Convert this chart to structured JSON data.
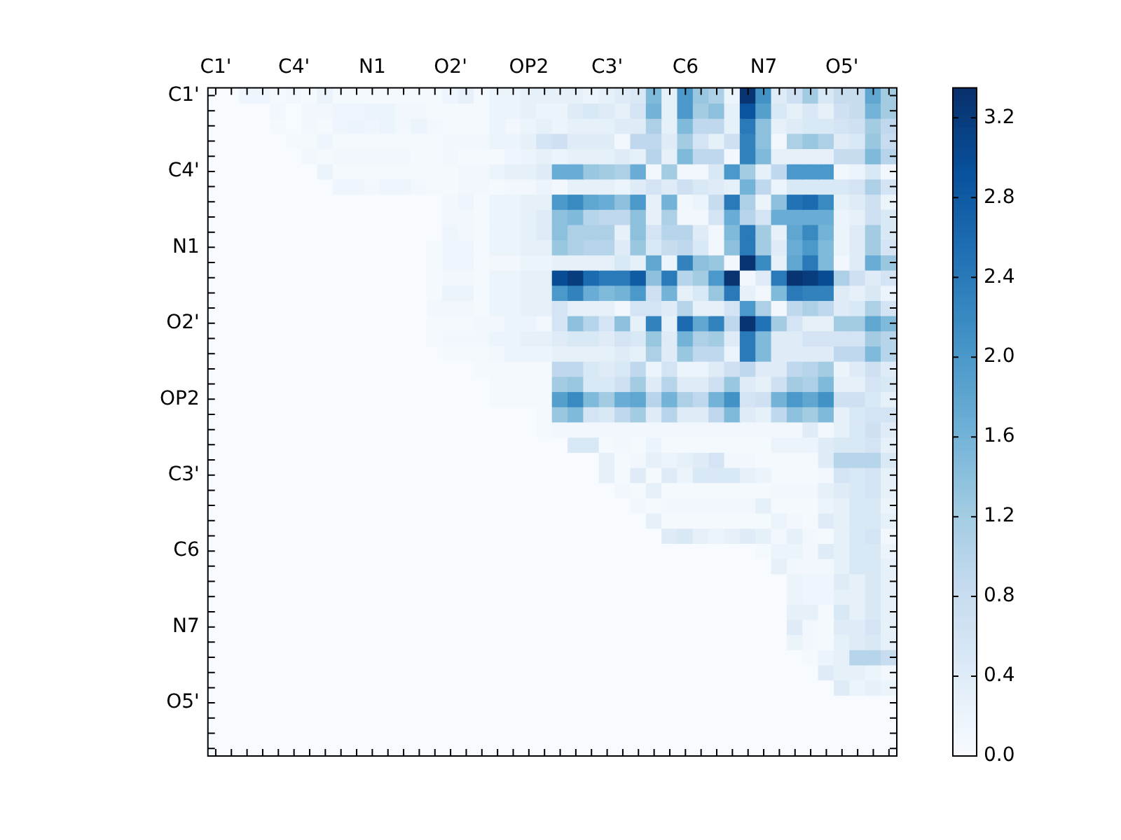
{
  "chart_data": {
    "type": "heatmap",
    "categories": [
      "C1'",
      null,
      null,
      null,
      null,
      "C4'",
      null,
      null,
      null,
      null,
      "N1",
      null,
      null,
      null,
      null,
      "O2'",
      null,
      null,
      null,
      null,
      "OP2",
      null,
      null,
      null,
      null,
      "C3'",
      null,
      null,
      null,
      null,
      "C6",
      null,
      null,
      null,
      null,
      "N7",
      null,
      null,
      null,
      null,
      "O5'",
      null,
      null,
      null
    ],
    "y_categories": [
      "C1'",
      null,
      null,
      null,
      null,
      "C4'",
      null,
      null,
      null,
      null,
      "N1",
      null,
      null,
      null,
      null,
      "O2'",
      null,
      null,
      null,
      null,
      "OP2",
      null,
      null,
      null,
      null,
      "C3'",
      null,
      null,
      null,
      null,
      "C6",
      null,
      null,
      null,
      null,
      "N7",
      null,
      null,
      null,
      null,
      "O5'",
      null,
      null,
      null
    ],
    "clim": [
      0,
      3.35
    ],
    "cticks": [
      {
        "value": 0,
        "label": "0.0"
      },
      0.4,
      0.8,
      1.2,
      1.6,
      {
        "value": 2,
        "label": "2.0"
      },
      2.4,
      2.8,
      3.2
    ],
    "cells": [
      [
        0,
        0,
        0.15,
        0.15,
        0.05,
        0.1,
        0.05,
        0.2,
        0.05,
        0.05,
        0.05,
        0.05,
        0.05,
        0.05,
        0.05,
        0.15,
        0.25,
        0.05,
        0.2,
        0.2,
        0.3,
        0.3,
        0.3,
        0.3,
        0.2,
        0.3,
        0.4,
        0.5,
        1.5,
        0.3,
        2.0,
        1.3,
        1.1,
        0.2,
        3.3,
        2.1,
        0.4,
        0.7,
        1.2,
        0.5,
        0.8,
        0.8,
        1.8,
        1.2
      ],
      [
        0,
        0,
        0,
        0,
        0.1,
        0,
        0.1,
        0.1,
        0.15,
        0.15,
        0.2,
        0.2,
        0.1,
        0.1,
        0.05,
        0.05,
        0.05,
        0.05,
        0.2,
        0.2,
        0.3,
        0.2,
        0.2,
        0.4,
        0.5,
        0.4,
        0.3,
        0.6,
        1.6,
        0.3,
        2.0,
        1.2,
        1.4,
        0.3,
        2.9,
        1.9,
        0.5,
        0.3,
        0.5,
        0.3,
        0.7,
        0.8,
        1.6,
        1.2
      ],
      [
        0,
        0,
        0,
        0,
        0.05,
        0,
        0.1,
        0.05,
        0.15,
        0.2,
        0.15,
        0.2,
        0.1,
        0.2,
        0.1,
        0.05,
        0.05,
        0.05,
        0.2,
        0.1,
        0.2,
        0.3,
        0.2,
        0.3,
        0.3,
        0.3,
        0.4,
        0.4,
        1.1,
        0.3,
        1.5,
        0.9,
        0.9,
        0.3,
        2.4,
        1.4,
        0.3,
        0.4,
        0.5,
        0.5,
        0.6,
        0.7,
        1.2,
        0.9
      ],
      [
        0,
        0,
        0,
        0,
        0,
        0.05,
        0.05,
        0.15,
        0.05,
        0.05,
        0.05,
        0.05,
        0.05,
        0.05,
        0.05,
        0.1,
        0.1,
        0.1,
        0.2,
        0.2,
        0.3,
        0.6,
        0.7,
        0.4,
        0.4,
        0.4,
        0.1,
        0.9,
        0.9,
        0.4,
        1.2,
        0.6,
        0.3,
        0.7,
        2.3,
        1.4,
        0.1,
        1.1,
        1.3,
        1.1,
        0.4,
        0.5,
        1.3,
        0.8
      ],
      [
        0,
        0,
        0,
        0,
        0,
        0,
        0.1,
        0.05,
        0.1,
        0.1,
        0.1,
        0.1,
        0.1,
        0.05,
        0.05,
        0.1,
        0.05,
        0.05,
        0.05,
        0.15,
        0.2,
        0.3,
        0.2,
        0.3,
        0.3,
        0.3,
        0.4,
        0.3,
        1.0,
        0.3,
        1.5,
        0.9,
        0.9,
        0.1,
        2.3,
        1.5,
        0.3,
        0.3,
        0.3,
        0.3,
        0.8,
        0.8,
        1.5,
        1.0
      ],
      [
        0,
        0,
        0,
        0,
        0,
        0,
        0,
        0.2,
        0.05,
        0.05,
        0.05,
        0.05,
        0.05,
        0.05,
        0.05,
        0.05,
        0.1,
        0.1,
        0.2,
        0.3,
        0.3,
        0.4,
        1.7,
        1.7,
        1.3,
        1.2,
        1.1,
        1.7,
        0.1,
        1.2,
        0.1,
        0.1,
        0.5,
        2.0,
        1.2,
        0.3,
        0.9,
        2.0,
        2.0,
        2.0,
        0.1,
        0.2,
        0.5,
        0.1
      ],
      [
        0,
        0,
        0,
        0,
        0,
        0,
        0,
        0,
        0.15,
        0.15,
        0.1,
        0.15,
        0.15,
        0.1,
        0.05,
        0.05,
        0.1,
        0.1,
        0.05,
        0.1,
        0.1,
        0.2,
        0.1,
        0.3,
        0.3,
        0.3,
        0.2,
        0.4,
        0.6,
        0.4,
        0.7,
        0.5,
        0.4,
        0.3,
        1.6,
        0.9,
        0.2,
        0.5,
        0.5,
        0.5,
        0.5,
        0.6,
        1.1,
        0.6
      ],
      [
        0,
        0,
        0,
        0,
        0,
        0,
        0,
        0,
        0,
        0,
        0,
        0,
        0,
        0,
        0,
        0.1,
        0.15,
        0.05,
        0.2,
        0.2,
        0.3,
        0.3,
        2.0,
        2.2,
        1.8,
        1.7,
        1.4,
        2.0,
        0.3,
        1.6,
        0.1,
        0.2,
        0.8,
        2.4,
        1.1,
        0.2,
        1.4,
        2.5,
        2.6,
        2.2,
        0.3,
        0.4,
        0.7,
        0.2
      ],
      [
        0,
        0,
        0,
        0,
        0,
        0,
        0,
        0,
        0,
        0,
        0,
        0,
        0,
        0,
        0,
        0.1,
        0.1,
        0.05,
        0.2,
        0.2,
        0.3,
        0.4,
        1.4,
        1.5,
        1.0,
        0.9,
        0.9,
        1.4,
        0.3,
        1.1,
        0.1,
        0.1,
        0.6,
        1.7,
        1.0,
        0.6,
        1.7,
        1.7,
        1.7,
        1.7,
        0.2,
        0.3,
        0.7,
        0.5
      ],
      [
        0,
        0,
        0,
        0,
        0,
        0,
        0,
        0,
        0,
        0,
        0,
        0,
        0,
        0,
        0,
        0.15,
        0.1,
        0.05,
        0.2,
        0.2,
        0.3,
        0.4,
        1.4,
        1.1,
        1.1,
        1.1,
        0.3,
        1.4,
        0.6,
        1.0,
        1.0,
        0.4,
        0.1,
        1.5,
        2.4,
        1.2,
        0.3,
        1.8,
        2.2,
        1.6,
        0.2,
        0.4,
        1.2,
        0.5
      ],
      [
        0,
        0,
        0,
        0,
        0,
        0,
        0,
        0,
        0,
        0,
        0,
        0,
        0,
        0,
        0.05,
        0.15,
        0.15,
        0.05,
        0.2,
        0.2,
        0.3,
        0.3,
        1.3,
        1.1,
        1.0,
        1.0,
        0.4,
        1.3,
        0.5,
        0.8,
        0.9,
        0.5,
        0.1,
        1.4,
        2.4,
        1.2,
        0.4,
        1.7,
        2.0,
        1.5,
        0.2,
        0.4,
        1.2,
        0.6
      ],
      [
        0,
        0,
        0,
        0,
        0,
        0,
        0,
        0,
        0,
        0,
        0,
        0,
        0,
        0,
        0.05,
        0.15,
        0.15,
        0.05,
        0.1,
        0.1,
        0.2,
        0.2,
        0.3,
        0.3,
        0.3,
        0.3,
        0.5,
        0.3,
        1.8,
        0.2,
        2.3,
        1.4,
        1.3,
        0.1,
        3.3,
        2.2,
        0.3,
        1.8,
        2.4,
        1.5,
        0.1,
        0.4,
        1.7,
        1.3
      ],
      [
        0,
        0,
        0,
        0,
        0,
        0,
        0,
        0,
        0,
        0,
        0,
        0,
        0,
        0,
        0.05,
        0.1,
        0.1,
        0.05,
        0.2,
        0.2,
        0.3,
        0.3,
        3.0,
        3.2,
        2.6,
        2.4,
        2.4,
        2.8,
        1.4,
        2.4,
        1.0,
        1.2,
        2.0,
        3.3,
        0.1,
        0.4,
        2.4,
        3.3,
        3.2,
        3.0,
        1.1,
        0.7,
        0.4,
        0.6
      ],
      [
        0,
        0,
        0,
        0,
        0,
        0,
        0,
        0,
        0,
        0,
        0,
        0,
        0,
        0,
        0.05,
        0.2,
        0.2,
        0.05,
        0.2,
        0.2,
        0.3,
        0.3,
        2.0,
        2.3,
        1.7,
        1.5,
        1.6,
        2.0,
        0.7,
        1.6,
        0.3,
        0.5,
        1.3,
        2.4,
        0.3,
        0.1,
        1.5,
        2.4,
        2.3,
        2.3,
        0.4,
        0.3,
        0.5,
        0.2
      ],
      [
        0,
        0,
        0,
        0,
        0,
        0,
        0,
        0,
        0,
        0,
        0,
        0,
        0,
        0,
        0.1,
        0.1,
        0.1,
        0.05,
        0.2,
        0.2,
        0.3,
        0.3,
        0.6,
        0.3,
        0.3,
        0.3,
        0.1,
        0.6,
        0.6,
        0.4,
        1.0,
        0.3,
        0.3,
        0.6,
        2.0,
        1.1,
        0.1,
        0.9,
        1.1,
        0.9,
        0.4,
        0.5,
        1.1,
        0.6
      ],
      [
        0,
        0,
        0,
        0,
        0,
        0,
        0,
        0,
        0,
        0,
        0,
        0,
        0,
        0,
        0.05,
        0.05,
        0.05,
        0.1,
        0.1,
        0.2,
        0.2,
        0.1,
        0.6,
        1.4,
        1.0,
        0.6,
        1.4,
        0.3,
        2.3,
        0.3,
        2.6,
        1.8,
        2.3,
        0.9,
        3.3,
        2.5,
        1.2,
        0.6,
        0.3,
        0.3,
        1.2,
        1.2,
        1.8,
        1.5
      ],
      [
        0,
        0,
        0,
        0,
        0,
        0,
        0,
        0,
        0,
        0,
        0,
        0,
        0,
        0,
        0.05,
        0.1,
        0.1,
        0.1,
        0.2,
        0.2,
        0.3,
        0.3,
        0.4,
        0.5,
        0.5,
        0.4,
        0.6,
        0.5,
        1.3,
        0.4,
        1.6,
        1.1,
        1.2,
        0.4,
        2.4,
        1.5,
        0.4,
        0.4,
        0.6,
        0.6,
        0.6,
        0.6,
        1.2,
        1.0
      ],
      [
        0,
        0,
        0,
        0,
        0,
        0,
        0,
        0,
        0,
        0,
        0,
        0,
        0,
        0,
        0,
        0.05,
        0.05,
        0.05,
        0.1,
        0.2,
        0.2,
        0.2,
        0.3,
        0.3,
        0.3,
        0.3,
        0.4,
        0.3,
        1.1,
        0.4,
        1.3,
        0.9,
        0.9,
        0.2,
        2.4,
        1.5,
        0.4,
        0.4,
        0.4,
        0.4,
        0.9,
        0.9,
        1.5,
        1.0
      ],
      [
        0,
        0,
        0,
        0,
        0,
        0,
        0,
        0,
        0,
        0,
        0,
        0,
        0,
        0,
        0,
        0,
        0,
        0.05,
        0.05,
        0.05,
        0.05,
        0.05,
        0.9,
        0.9,
        0.5,
        0.4,
        0.5,
        0.9,
        0.2,
        0.6,
        0.2,
        0.2,
        0.4,
        0.7,
        0.9,
        0.4,
        0.4,
        0.9,
        1.0,
        1.2,
        0.2,
        0.4,
        0.7,
        0.4
      ],
      [
        0,
        0,
        0,
        0,
        0,
        0,
        0,
        0,
        0,
        0,
        0,
        0,
        0,
        0,
        0,
        0,
        0,
        0,
        0.05,
        0.05,
        0.05,
        0.05,
        1.2,
        1.3,
        0.5,
        0.5,
        0.7,
        1.2,
        0.4,
        1.0,
        0.4,
        0.4,
        0.7,
        1.3,
        0.4,
        0.3,
        0.7,
        1.2,
        1.1,
        1.5,
        0.3,
        0.3,
        0.6,
        0.5
      ],
      [
        0,
        0,
        0,
        0,
        0,
        0,
        0,
        0,
        0,
        0,
        0,
        0,
        0,
        0,
        0,
        0,
        0,
        0,
        0.05,
        0.05,
        0.05,
        0.05,
        1.9,
        2.2,
        1.5,
        1.2,
        1.7,
        1.8,
        1.0,
        1.6,
        1.1,
        0.9,
        1.6,
        2.1,
        0.6,
        0.7,
        1.6,
        2.0,
        1.8,
        2.1,
        0.7,
        0.7,
        0.5,
        0.3
      ],
      [
        0,
        0,
        0,
        0,
        0,
        0,
        0,
        0,
        0,
        0,
        0,
        0,
        0,
        0,
        0,
        0,
        0,
        0,
        0,
        0,
        0,
        0.05,
        1.3,
        1.5,
        0.6,
        0.5,
        0.9,
        1.2,
        0.4,
        1.0,
        0.4,
        0.4,
        0.9,
        1.5,
        0.4,
        0.3,
        0.9,
        1.4,
        1.2,
        1.5,
        0.3,
        0.5,
        0.6,
        0.6
      ],
      [
        0,
        0,
        0,
        0,
        0,
        0,
        0,
        0,
        0,
        0,
        0,
        0,
        0,
        0,
        0,
        0,
        0,
        0,
        0,
        0,
        0,
        0.05,
        0.1,
        0.1,
        0.1,
        0.1,
        0.1,
        0.1,
        0.1,
        0.1,
        0.1,
        0.1,
        0.1,
        0.1,
        0.1,
        0.1,
        0.1,
        0.1,
        0.4,
        0.1,
        0.3,
        0.5,
        0.7,
        0.4
      ],
      [
        0,
        0,
        0,
        0,
        0,
        0,
        0,
        0,
        0,
        0,
        0,
        0,
        0,
        0,
        0,
        0,
        0,
        0,
        0,
        0,
        0,
        0,
        0,
        0.5,
        0.5,
        0.05,
        0.1,
        0.05,
        0.2,
        0.05,
        0.05,
        0.05,
        0.05,
        0.05,
        0.05,
        0.05,
        0.2,
        0.2,
        0.2,
        0.4,
        0.5,
        0.5,
        0.6,
        0.3
      ],
      [
        0,
        0,
        0,
        0,
        0,
        0,
        0,
        0,
        0,
        0,
        0,
        0,
        0,
        0,
        0,
        0,
        0,
        0,
        0,
        0,
        0,
        0,
        0,
        0,
        0,
        0.3,
        0.05,
        0.1,
        0.3,
        0.2,
        0.3,
        0.4,
        0.6,
        0.1,
        0.1,
        0.05,
        0.05,
        0.05,
        0.05,
        0.4,
        1.0,
        1.0,
        1.0,
        0.5
      ],
      [
        0,
        0,
        0,
        0,
        0,
        0,
        0,
        0,
        0,
        0,
        0,
        0,
        0,
        0,
        0,
        0,
        0,
        0,
        0,
        0,
        0,
        0,
        0,
        0,
        0,
        0.3,
        0.05,
        0.4,
        0.05,
        0.4,
        0.2,
        0.5,
        0.5,
        0.5,
        0.3,
        0.2,
        0.05,
        0.05,
        0.05,
        0.1,
        0.6,
        0.5,
        0.6,
        0.3
      ],
      [
        0,
        0,
        0,
        0,
        0,
        0,
        0,
        0,
        0,
        0,
        0,
        0,
        0,
        0,
        0,
        0,
        0,
        0,
        0,
        0,
        0,
        0,
        0,
        0,
        0,
        0,
        0.1,
        0.05,
        0.3,
        0.05,
        0.05,
        0.05,
        0.05,
        0.05,
        0.05,
        0.05,
        0.1,
        0.1,
        0.1,
        0.3,
        0.4,
        0.5,
        0.6,
        0.3
      ],
      [
        0,
        0,
        0,
        0,
        0,
        0,
        0,
        0,
        0,
        0,
        0,
        0,
        0,
        0,
        0,
        0,
        0,
        0,
        0,
        0,
        0,
        0,
        0,
        0,
        0,
        0,
        0,
        0.1,
        0.05,
        0.1,
        0.1,
        0.1,
        0.1,
        0.1,
        0.1,
        0.3,
        0.05,
        0.05,
        0.05,
        0.2,
        0.3,
        0.5,
        0.5,
        0.2
      ],
      [
        0,
        0,
        0,
        0,
        0,
        0,
        0,
        0,
        0,
        0,
        0,
        0,
        0,
        0,
        0,
        0,
        0,
        0,
        0,
        0,
        0,
        0,
        0,
        0,
        0,
        0,
        0,
        0,
        0.3,
        0.05,
        0.05,
        0.05,
        0.05,
        0.05,
        0.05,
        0.05,
        0.2,
        0.1,
        0.05,
        0.4,
        0.3,
        0.5,
        0.5,
        0.3
      ],
      [
        0,
        0,
        0,
        0,
        0,
        0,
        0,
        0,
        0,
        0,
        0,
        0,
        0,
        0,
        0,
        0,
        0,
        0,
        0,
        0,
        0,
        0,
        0,
        0,
        0,
        0,
        0,
        0,
        0,
        0.4,
        0.5,
        0.3,
        0.2,
        0.3,
        0.4,
        0.3,
        0.1,
        0.3,
        0.1,
        0.05,
        0.3,
        0.5,
        0.6,
        0.1
      ],
      [
        0,
        0,
        0,
        0,
        0,
        0,
        0,
        0,
        0,
        0,
        0,
        0,
        0,
        0,
        0,
        0,
        0,
        0,
        0,
        0,
        0,
        0,
        0,
        0,
        0,
        0,
        0,
        0,
        0,
        0,
        0,
        0,
        0,
        0,
        0,
        0.05,
        0.2,
        0.2,
        0.1,
        0.4,
        0.3,
        0.5,
        0.5,
        0.2
      ],
      [
        0,
        0,
        0,
        0,
        0,
        0,
        0,
        0,
        0,
        0,
        0,
        0,
        0,
        0,
        0,
        0,
        0,
        0,
        0,
        0,
        0,
        0,
        0,
        0,
        0,
        0,
        0,
        0,
        0,
        0,
        0,
        0,
        0,
        0,
        0,
        0,
        0.3,
        0.1,
        0.1,
        0.1,
        0.3,
        0.5,
        0.5,
        0.3
      ],
      [
        0,
        0,
        0,
        0,
        0,
        0,
        0,
        0,
        0,
        0,
        0,
        0,
        0,
        0,
        0,
        0,
        0,
        0,
        0,
        0,
        0,
        0,
        0,
        0,
        0,
        0,
        0,
        0,
        0,
        0,
        0,
        0,
        0,
        0,
        0,
        0,
        0,
        0.2,
        0.15,
        0.15,
        0.4,
        0.3,
        0.5,
        0.3
      ],
      [
        0,
        0,
        0,
        0,
        0,
        0,
        0,
        0,
        0,
        0,
        0,
        0,
        0,
        0,
        0,
        0,
        0,
        0,
        0,
        0,
        0,
        0,
        0,
        0,
        0,
        0,
        0,
        0,
        0,
        0,
        0,
        0,
        0,
        0,
        0,
        0,
        0,
        0.2,
        0.15,
        0.15,
        0.3,
        0.3,
        0.5,
        0.3
      ],
      [
        0,
        0,
        0,
        0,
        0,
        0,
        0,
        0,
        0,
        0,
        0,
        0,
        0,
        0,
        0,
        0,
        0,
        0,
        0,
        0,
        0,
        0,
        0,
        0,
        0,
        0,
        0,
        0,
        0,
        0,
        0,
        0,
        0,
        0,
        0,
        0,
        0,
        0.3,
        0.3,
        0.05,
        0.5,
        0.3,
        0.5,
        0.3
      ],
      [
        0,
        0,
        0,
        0,
        0,
        0,
        0,
        0,
        0,
        0,
        0,
        0,
        0,
        0,
        0,
        0,
        0,
        0,
        0,
        0,
        0,
        0,
        0,
        0,
        0,
        0,
        0,
        0,
        0,
        0,
        0,
        0,
        0,
        0,
        0,
        0,
        0,
        0.4,
        0.1,
        0.05,
        0.4,
        0.4,
        0.6,
        0.3
      ],
      [
        0,
        0,
        0,
        0,
        0,
        0,
        0,
        0,
        0,
        0,
        0,
        0,
        0,
        0,
        0,
        0,
        0,
        0,
        0,
        0,
        0,
        0,
        0,
        0,
        0,
        0,
        0,
        0,
        0,
        0,
        0,
        0,
        0,
        0,
        0,
        0,
        0,
        0.2,
        0.1,
        0.05,
        0.3,
        0.4,
        0.5,
        0.3
      ],
      [
        0,
        0,
        0,
        0,
        0,
        0,
        0,
        0,
        0,
        0,
        0,
        0,
        0,
        0,
        0,
        0,
        0,
        0,
        0,
        0,
        0,
        0,
        0,
        0,
        0,
        0,
        0,
        0,
        0,
        0,
        0,
        0,
        0,
        0,
        0,
        0,
        0,
        0,
        0.05,
        0.2,
        0.3,
        1.0,
        1.0,
        0.8
      ],
      [
        0,
        0,
        0,
        0,
        0,
        0,
        0,
        0,
        0,
        0,
        0,
        0,
        0,
        0,
        0,
        0,
        0,
        0,
        0,
        0,
        0,
        0,
        0,
        0,
        0,
        0,
        0,
        0,
        0,
        0,
        0,
        0,
        0,
        0,
        0,
        0,
        0,
        0,
        0,
        0.4,
        0.3,
        0.3,
        0.2,
        0.1
      ],
      [
        0,
        0,
        0,
        0,
        0,
        0,
        0,
        0,
        0,
        0,
        0,
        0,
        0,
        0,
        0,
        0,
        0,
        0,
        0,
        0,
        0,
        0,
        0,
        0,
        0,
        0,
        0,
        0,
        0,
        0,
        0,
        0,
        0,
        0,
        0,
        0,
        0,
        0,
        0,
        0,
        0.4,
        0.2,
        0.3,
        0.2
      ],
      [
        0,
        0,
        0,
        0,
        0,
        0,
        0,
        0,
        0,
        0,
        0,
        0,
        0,
        0,
        0,
        0,
        0,
        0,
        0,
        0,
        0,
        0,
        0,
        0,
        0,
        0,
        0,
        0,
        0,
        0,
        0,
        0,
        0,
        0,
        0,
        0,
        0,
        0,
        0,
        0,
        0,
        0,
        0,
        0
      ],
      [
        0,
        0,
        0,
        0,
        0,
        0,
        0,
        0,
        0,
        0,
        0,
        0,
        0,
        0,
        0,
        0,
        0,
        0,
        0,
        0,
        0,
        0,
        0,
        0,
        0,
        0,
        0,
        0,
        0,
        0,
        0,
        0,
        0,
        0,
        0,
        0,
        0,
        0,
        0,
        0,
        0,
        0,
        0,
        0
      ],
      [
        0,
        0,
        0,
        0,
        0,
        0,
        0,
        0,
        0,
        0,
        0,
        0,
        0,
        0,
        0,
        0,
        0,
        0,
        0,
        0,
        0,
        0,
        0,
        0,
        0,
        0,
        0,
        0,
        0,
        0,
        0,
        0,
        0,
        0,
        0,
        0,
        0,
        0,
        0,
        0,
        0,
        0,
        0,
        0
      ],
      [
        0,
        0,
        0,
        0,
        0,
        0,
        0,
        0,
        0,
        0,
        0,
        0,
        0,
        0,
        0,
        0,
        0,
        0,
        0,
        0,
        0,
        0,
        0,
        0,
        0,
        0,
        0,
        0,
        0,
        0,
        0,
        0,
        0,
        0,
        0,
        0,
        0,
        0,
        0,
        0,
        0,
        0,
        0,
        0
      ]
    ]
  }
}
